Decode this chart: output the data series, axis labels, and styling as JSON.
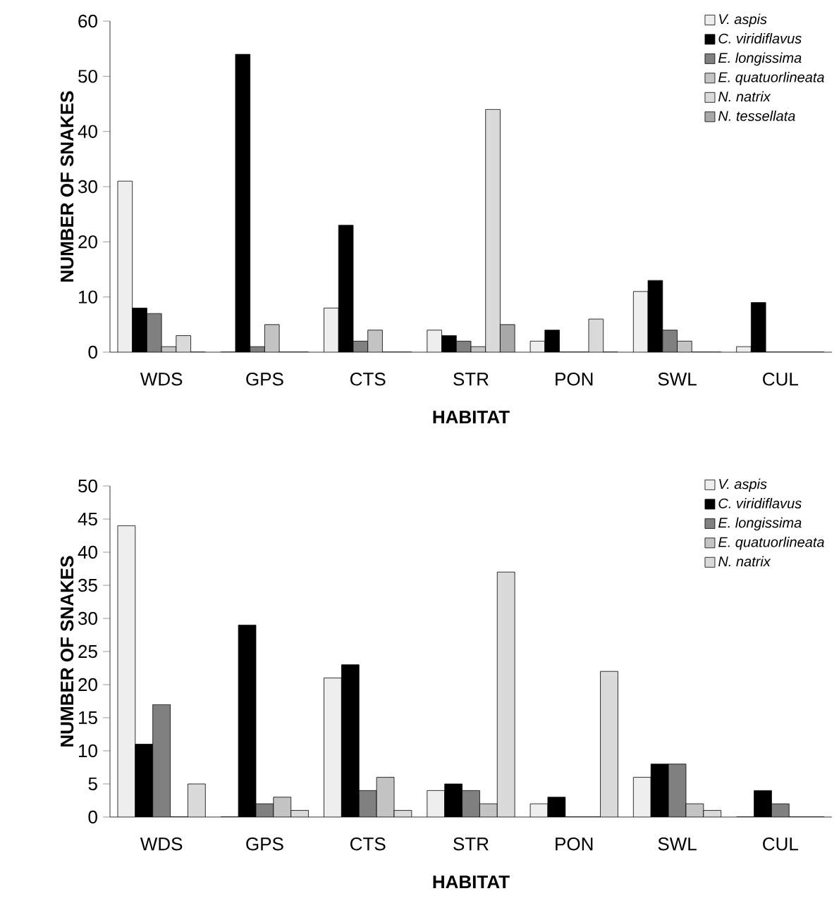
{
  "chart_data": [
    {
      "type": "bar",
      "xlabel": "HABITAT",
      "ylabel": "NUMBER OF SNAKES",
      "categories": [
        "WDS",
        "GPS",
        "CTS",
        "STR",
        "PON",
        "SWL",
        "CUL"
      ],
      "ylim": [
        0,
        60
      ],
      "yticks": [
        0,
        10,
        20,
        30,
        40,
        50,
        60
      ],
      "legend": "top right",
      "series": [
        {
          "name": "V. aspis",
          "color": "#eeeeee",
          "values": [
            31,
            0,
            8,
            4,
            2,
            11,
            1
          ]
        },
        {
          "name": "C. viridiflavus",
          "color": "#000000",
          "values": [
            8,
            54,
            23,
            3,
            4,
            13,
            9
          ]
        },
        {
          "name": "E. longissima",
          "color": "#808080",
          "values": [
            7,
            1,
            2,
            2,
            0,
            4,
            0
          ]
        },
        {
          "name": "E. quatuorlineata",
          "color": "#c4c4c4",
          "values": [
            1,
            5,
            4,
            1,
            0,
            2,
            0
          ]
        },
        {
          "name": "N. natrix",
          "color": "#dadada",
          "values": [
            3,
            0,
            0,
            44,
            6,
            0,
            0
          ]
        },
        {
          "name": "N. tessellata",
          "color": "#a8a8a8",
          "values": [
            0,
            0,
            0,
            5,
            0,
            0,
            0
          ]
        }
      ]
    },
    {
      "type": "bar",
      "xlabel": "HABITAT",
      "ylabel": "NUMBER OF SNAKES",
      "categories": [
        "WDS",
        "GPS",
        "CTS",
        "STR",
        "PON",
        "SWL",
        "CUL"
      ],
      "ylim": [
        0,
        50
      ],
      "yticks": [
        0,
        5,
        10,
        15,
        20,
        25,
        30,
        35,
        40,
        45,
        50
      ],
      "legend": "top right",
      "series": [
        {
          "name": "V. aspis",
          "color": "#eeeeee",
          "values": [
            44,
            0,
            21,
            4,
            2,
            6,
            0
          ]
        },
        {
          "name": "C. viridiflavus",
          "color": "#000000",
          "values": [
            11,
            29,
            23,
            5,
            3,
            8,
            4
          ]
        },
        {
          "name": "E. longissima",
          "color": "#808080",
          "values": [
            17,
            2,
            4,
            4,
            0,
            8,
            2
          ]
        },
        {
          "name": "E. quatuorlineata",
          "color": "#c4c4c4",
          "values": [
            0,
            3,
            6,
            2,
            0,
            2,
            0
          ]
        },
        {
          "name": "N. natrix",
          "color": "#dadada",
          "values": [
            5,
            1,
            1,
            37,
            22,
            1,
            0
          ]
        }
      ]
    }
  ]
}
